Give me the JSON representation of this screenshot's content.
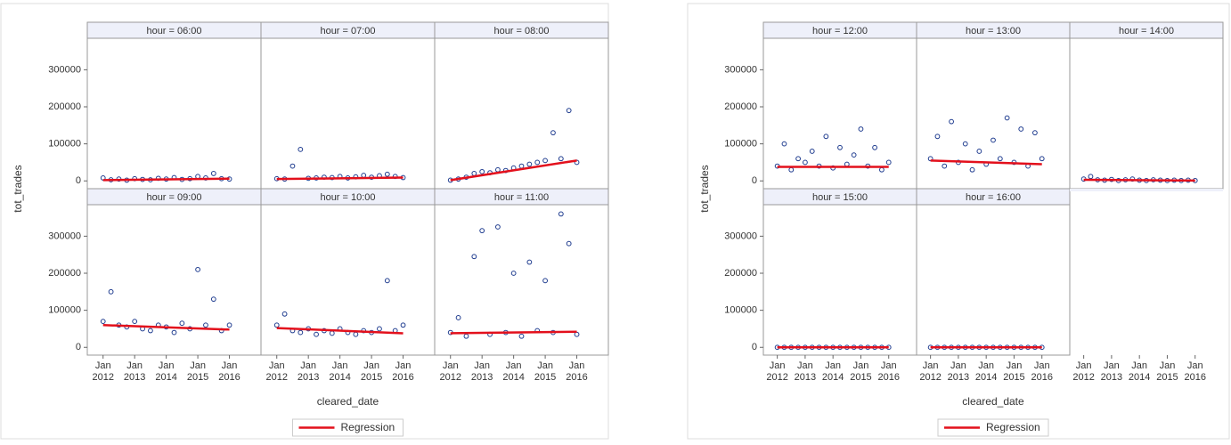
{
  "chart_data": [
    {
      "type": "scatter",
      "ylabel": "tot_trades",
      "xlabel": "cleared_date",
      "ylim": [
        -21000,
        385000
      ],
      "yticks": [
        0,
        100000,
        200000,
        300000
      ],
      "xlim": [
        "2011-07",
        "2017-01"
      ],
      "xticks": [
        {
          "value": "2012-01",
          "label": "Jan 2012"
        },
        {
          "value": "2013-01",
          "label": "Jan 2013"
        },
        {
          "value": "2014-01",
          "label": "Jan 2014"
        },
        {
          "value": "2015-01",
          "label": "Jan 2015"
        },
        {
          "value": "2016-01",
          "label": "Jan 2016"
        }
      ],
      "marker_color": "#1f3c8f",
      "regression_name": "Regression",
      "regression_color": "#e3101c",
      "panels": [
        {
          "title": "hour = 06:00",
          "x": [
            "2012-01",
            "2012-04",
            "2012-07",
            "2012-10",
            "2013-01",
            "2013-04",
            "2013-07",
            "2013-10",
            "2014-01",
            "2014-04",
            "2014-07",
            "2014-10",
            "2015-01",
            "2015-04",
            "2015-07",
            "2015-10",
            "2016-01"
          ],
          "y": [
            8000,
            3000,
            5000,
            2000,
            6000,
            4000,
            3000,
            7000,
            5000,
            9000,
            4000,
            6000,
            12000,
            8000,
            20000,
            6000,
            5000
          ],
          "regression": {
            "x": [
              "2012-01",
              "2016-01"
            ],
            "y": [
              2000,
              6000
            ]
          }
        },
        {
          "title": "hour = 07:00",
          "x": [
            "2012-01",
            "2012-04",
            "2012-07",
            "2012-10",
            "2013-01",
            "2013-04",
            "2013-07",
            "2013-10",
            "2014-01",
            "2014-04",
            "2014-07",
            "2014-10",
            "2015-01",
            "2015-04",
            "2015-07",
            "2015-10",
            "2016-01"
          ],
          "y": [
            6000,
            5000,
            40000,
            85000,
            7000,
            8000,
            10000,
            9000,
            12000,
            8000,
            11000,
            15000,
            10000,
            14000,
            18000,
            12000,
            9000
          ],
          "regression": {
            "x": [
              "2012-01",
              "2016-01"
            ],
            "y": [
              5000,
              9000
            ]
          }
        },
        {
          "title": "hour = 08:00",
          "x": [
            "2012-01",
            "2012-04",
            "2012-07",
            "2012-10",
            "2013-01",
            "2013-04",
            "2013-07",
            "2013-10",
            "2014-01",
            "2014-04",
            "2014-07",
            "2014-10",
            "2015-01",
            "2015-04",
            "2015-07",
            "2015-10",
            "2016-01"
          ],
          "y": [
            2000,
            5000,
            10000,
            20000,
            25000,
            22000,
            30000,
            28000,
            35000,
            40000,
            45000,
            50000,
            55000,
            130000,
            60000,
            190000,
            50000
          ],
          "regression": {
            "x": [
              "2012-01",
              "2016-01"
            ],
            "y": [
              2000,
              55000
            ]
          }
        },
        {
          "title": "hour = 09:00",
          "x": [
            "2012-01",
            "2012-04",
            "2012-07",
            "2012-10",
            "2013-01",
            "2013-04",
            "2013-07",
            "2013-10",
            "2014-01",
            "2014-04",
            "2014-07",
            "2014-10",
            "2015-01",
            "2015-04",
            "2015-07",
            "2015-10",
            "2016-01"
          ],
          "y": [
            70000,
            150000,
            60000,
            55000,
            70000,
            50000,
            45000,
            60000,
            55000,
            40000,
            65000,
            50000,
            210000,
            60000,
            130000,
            45000,
            60000
          ],
          "regression": {
            "x": [
              "2012-01",
              "2016-01"
            ],
            "y": [
              60000,
              48000
            ]
          }
        },
        {
          "title": "hour = 10:00",
          "x": [
            "2012-01",
            "2012-04",
            "2012-07",
            "2012-10",
            "2013-01",
            "2013-04",
            "2013-07",
            "2013-10",
            "2014-01",
            "2014-04",
            "2014-07",
            "2014-10",
            "2015-01",
            "2015-04",
            "2015-07",
            "2015-10",
            "2016-01"
          ],
          "y": [
            60000,
            90000,
            45000,
            40000,
            50000,
            35000,
            45000,
            38000,
            50000,
            40000,
            35000,
            45000,
            40000,
            50000,
            180000,
            45000,
            60000
          ],
          "regression": {
            "x": [
              "2012-01",
              "2016-01"
            ],
            "y": [
              52000,
              38000
            ]
          }
        },
        {
          "title": "hour = 11:00",
          "x": [
            "2012-01",
            "2012-04",
            "2012-07",
            "2012-10",
            "2013-01",
            "2013-04",
            "2013-07",
            "2013-10",
            "2014-01",
            "2014-04",
            "2014-07",
            "2014-10",
            "2015-01",
            "2015-04",
            "2015-07",
            "2015-10",
            "2016-01"
          ],
          "y": [
            40000,
            80000,
            30000,
            245000,
            315000,
            35000,
            325000,
            40000,
            200000,
            30000,
            230000,
            45000,
            180000,
            40000,
            360000,
            280000,
            35000
          ],
          "regression": {
            "x": [
              "2012-01",
              "2016-01"
            ],
            "y": [
              38000,
              42000
            ]
          }
        }
      ]
    },
    {
      "type": "scatter",
      "ylabel": "tot_trades",
      "xlabel": "cleared_date",
      "ylim": [
        -21000,
        385000
      ],
      "yticks": [
        0,
        100000,
        200000,
        300000
      ],
      "xlim": [
        "2011-07",
        "2017-01"
      ],
      "xticks": [
        {
          "value": "2012-01",
          "label": "Jan 2012"
        },
        {
          "value": "2013-01",
          "label": "Jan 2013"
        },
        {
          "value": "2014-01",
          "label": "Jan 2014"
        },
        {
          "value": "2015-01",
          "label": "Jan 2015"
        },
        {
          "value": "2016-01",
          "label": "Jan 2016"
        }
      ],
      "marker_color": "#1f3c8f",
      "regression_name": "Regression",
      "regression_color": "#e3101c",
      "panels": [
        {
          "title": "hour = 12:00",
          "x": [
            "2012-01",
            "2012-04",
            "2012-07",
            "2012-10",
            "2013-01",
            "2013-04",
            "2013-07",
            "2013-10",
            "2014-01",
            "2014-04",
            "2014-07",
            "2014-10",
            "2015-01",
            "2015-04",
            "2015-07",
            "2015-10",
            "2016-01"
          ],
          "y": [
            40000,
            100000,
            30000,
            60000,
            50000,
            80000,
            40000,
            120000,
            35000,
            90000,
            45000,
            70000,
            140000,
            40000,
            90000,
            30000,
            50000
          ],
          "regression": {
            "x": [
              "2012-01",
              "2016-01"
            ],
            "y": [
              38000,
              38000
            ]
          }
        },
        {
          "title": "hour = 13:00",
          "x": [
            "2012-01",
            "2012-04",
            "2012-07",
            "2012-10",
            "2013-01",
            "2013-04",
            "2013-07",
            "2013-10",
            "2014-01",
            "2014-04",
            "2014-07",
            "2014-10",
            "2015-01",
            "2015-04",
            "2015-07",
            "2015-10",
            "2016-01"
          ],
          "y": [
            60000,
            120000,
            40000,
            160000,
            50000,
            100000,
            30000,
            80000,
            45000,
            110000,
            60000,
            170000,
            50000,
            140000,
            40000,
            130000,
            60000
          ],
          "regression": {
            "x": [
              "2012-01",
              "2016-01"
            ],
            "y": [
              55000,
              45000
            ]
          }
        },
        {
          "title": "hour = 14:00",
          "x": [
            "2012-01",
            "2012-04",
            "2012-07",
            "2012-10",
            "2013-01",
            "2013-04",
            "2013-07",
            "2013-10",
            "2014-01",
            "2014-04",
            "2014-07",
            "2014-10",
            "2015-01",
            "2015-04",
            "2015-07",
            "2015-10",
            "2016-01"
          ],
          "y": [
            5000,
            12000,
            3000,
            2000,
            4000,
            1000,
            3000,
            5000,
            2000,
            1000,
            3000,
            2000,
            1000,
            2000,
            1000,
            2000,
            1000
          ],
          "regression": {
            "x": [
              "2012-01",
              "2016-01"
            ],
            "y": [
              3000,
              1000
            ]
          }
        },
        {
          "title": "hour = 15:00",
          "x": [
            "2012-01",
            "2012-04",
            "2012-07",
            "2012-10",
            "2013-01",
            "2013-04",
            "2013-07",
            "2013-10",
            "2014-01",
            "2014-04",
            "2014-07",
            "2014-10",
            "2015-01",
            "2015-04",
            "2015-07",
            "2015-10",
            "2016-01"
          ],
          "y": [
            0,
            0,
            0,
            0,
            0,
            0,
            0,
            0,
            0,
            0,
            0,
            0,
            0,
            0,
            0,
            0,
            0
          ],
          "regression": {
            "x": [
              "2012-01",
              "2016-01"
            ],
            "y": [
              0,
              0
            ]
          }
        },
        {
          "title": "hour = 16:00",
          "x": [
            "2012-01",
            "2012-04",
            "2012-07",
            "2012-10",
            "2013-01",
            "2013-04",
            "2013-07",
            "2013-10",
            "2014-01",
            "2014-04",
            "2014-07",
            "2014-10",
            "2015-01",
            "2015-04",
            "2015-07",
            "2015-10",
            "2016-01"
          ],
          "y": [
            0,
            0,
            0,
            0,
            0,
            0,
            0,
            0,
            0,
            0,
            0,
            0,
            0,
            0,
            0,
            0,
            0
          ],
          "regression": {
            "x": [
              "2012-01",
              "2016-01"
            ],
            "y": [
              0,
              0
            ]
          }
        }
      ]
    }
  ]
}
